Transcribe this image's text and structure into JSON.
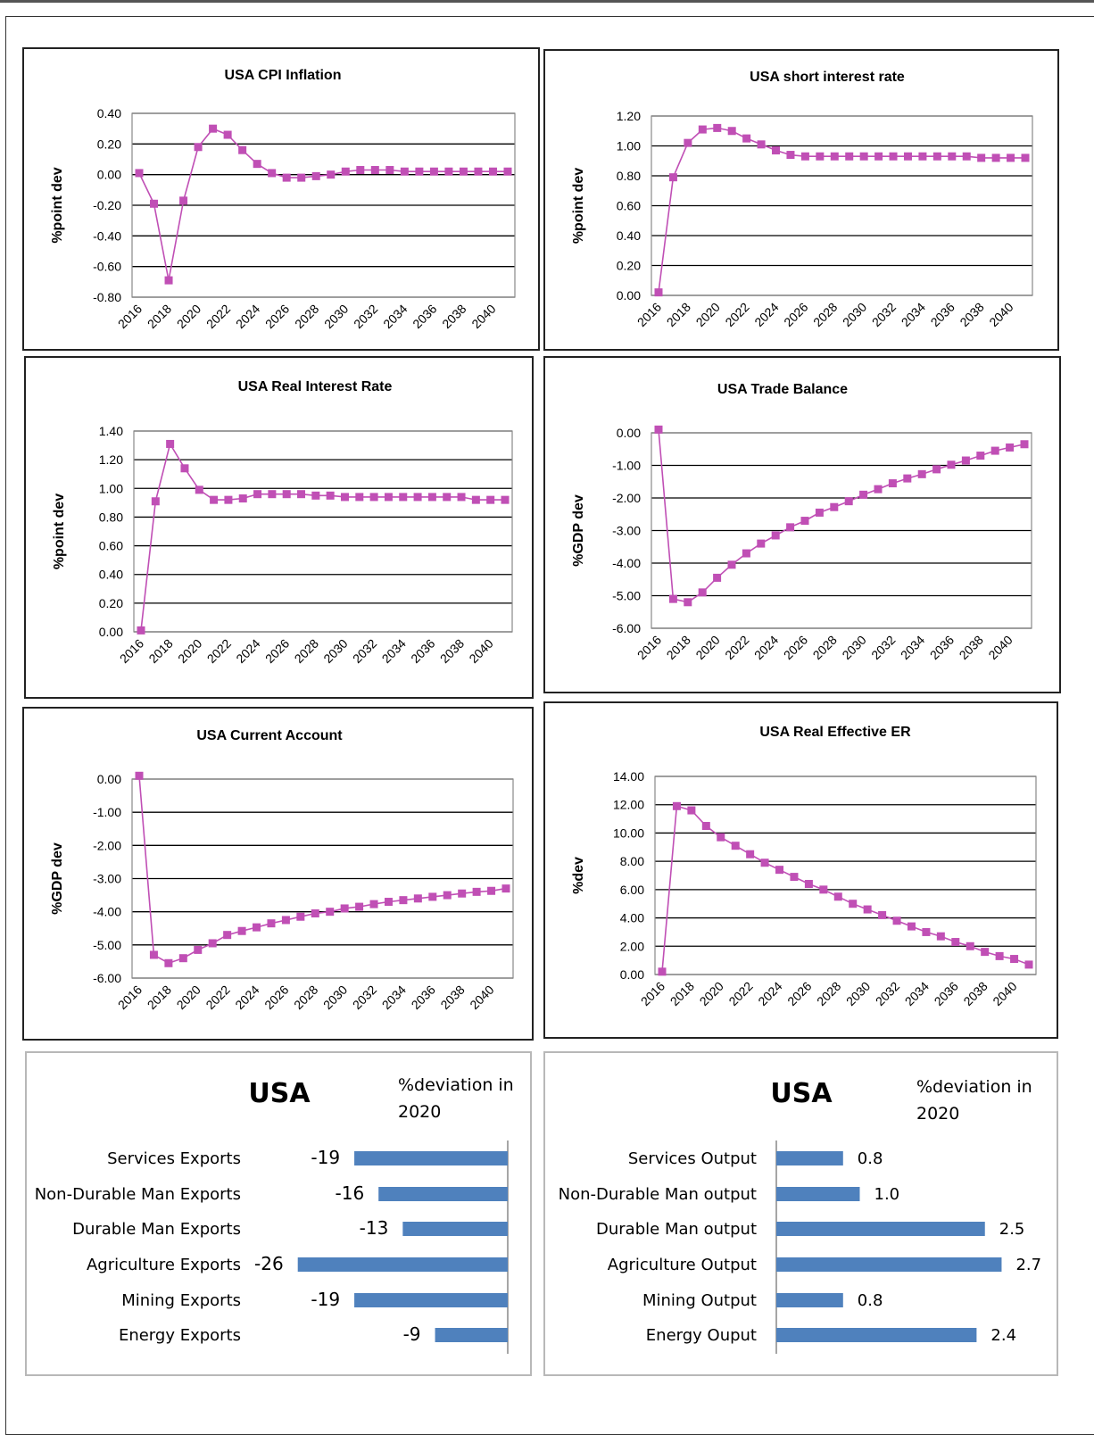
{
  "chart_data": [
    {
      "type": "line",
      "title": "USA CPI Inflation",
      "ylabel": "%point dev",
      "x_tick_labels": [
        "2016",
        "2018",
        "2020",
        "2022",
        "2024",
        "2026",
        "2028",
        "2030",
        "2032",
        "2034",
        "2036",
        "2038",
        "2040"
      ],
      "y_tick_labels": [
        "0.40",
        "0.20",
        "0.00",
        "-0.20",
        "-0.40",
        "-0.60",
        "-0.80"
      ],
      "ylim": [
        -0.8,
        0.4
      ],
      "grid": true,
      "color": "#c04fb5",
      "x": [
        2016,
        2017,
        2018,
        2019,
        2020,
        2021,
        2022,
        2023,
        2024,
        2025,
        2026,
        2027,
        2028,
        2029,
        2030,
        2031,
        2032,
        2033,
        2034,
        2035,
        2036,
        2037,
        2038,
        2039,
        2040,
        2041
      ],
      "values": [
        0.01,
        -0.19,
        -0.69,
        -0.17,
        0.18,
        0.3,
        0.26,
        0.16,
        0.07,
        0.01,
        -0.02,
        -0.02,
        -0.01,
        0.0,
        0.02,
        0.03,
        0.03,
        0.03,
        0.02,
        0.02,
        0.02,
        0.02,
        0.02,
        0.02,
        0.02,
        0.02
      ]
    },
    {
      "type": "line",
      "title": "USA short interest rate",
      "ylabel": "%point dev",
      "x_tick_labels": [
        "2016",
        "2018",
        "2020",
        "2022",
        "2024",
        "2026",
        "2028",
        "2030",
        "2032",
        "2034",
        "2036",
        "2038",
        "2040"
      ],
      "y_tick_labels": [
        "1.20",
        "1.00",
        "0.80",
        "0.60",
        "0.40",
        "0.20",
        "0.00"
      ],
      "ylim": [
        0,
        1.2
      ],
      "grid": true,
      "color": "#c04fb5",
      "x": [
        2016,
        2017,
        2018,
        2019,
        2020,
        2021,
        2022,
        2023,
        2024,
        2025,
        2026,
        2027,
        2028,
        2029,
        2030,
        2031,
        2032,
        2033,
        2034,
        2035,
        2036,
        2037,
        2038,
        2039,
        2040,
        2041
      ],
      "values": [
        0.02,
        0.79,
        1.02,
        1.11,
        1.12,
        1.1,
        1.05,
        1.01,
        0.97,
        0.94,
        0.93,
        0.93,
        0.93,
        0.93,
        0.93,
        0.93,
        0.93,
        0.93,
        0.93,
        0.93,
        0.93,
        0.93,
        0.92,
        0.92,
        0.92,
        0.92
      ]
    },
    {
      "type": "line",
      "title": "USA Real Interest Rate",
      "ylabel": "%point dev",
      "x_tick_labels": [
        "2016",
        "2018",
        "2020",
        "2022",
        "2024",
        "2026",
        "2028",
        "2030",
        "2032",
        "2034",
        "2036",
        "2038",
        "2040"
      ],
      "y_tick_labels": [
        "1.40",
        "1.20",
        "1.00",
        "0.80",
        "0.60",
        "0.40",
        "0.20",
        "0.00"
      ],
      "ylim": [
        0,
        1.4
      ],
      "grid": true,
      "color": "#c04fb5",
      "x": [
        2016,
        2017,
        2018,
        2019,
        2020,
        2021,
        2022,
        2023,
        2024,
        2025,
        2026,
        2027,
        2028,
        2029,
        2030,
        2031,
        2032,
        2033,
        2034,
        2035,
        2036,
        2037,
        2038,
        2039,
        2040,
        2041
      ],
      "values": [
        0.01,
        0.91,
        1.31,
        1.14,
        0.99,
        0.92,
        0.92,
        0.93,
        0.96,
        0.96,
        0.96,
        0.96,
        0.95,
        0.95,
        0.94,
        0.94,
        0.94,
        0.94,
        0.94,
        0.94,
        0.94,
        0.94,
        0.94,
        0.92,
        0.92,
        0.92
      ]
    },
    {
      "type": "line",
      "title": "USA Trade Balance",
      "ylabel": "%GDP dev",
      "x_tick_labels": [
        "2016",
        "2018",
        "2020",
        "2022",
        "2024",
        "2026",
        "2028",
        "2030",
        "2032",
        "2034",
        "2036",
        "2038",
        "2040"
      ],
      "y_tick_labels": [
        "0.00",
        "-1.00",
        "-2.00",
        "-3.00",
        "-4.00",
        "-5.00",
        "-6.00"
      ],
      "ylim": [
        -6,
        0
      ],
      "grid": true,
      "color": "#c04fb5",
      "x": [
        2016,
        2017,
        2018,
        2019,
        2020,
        2021,
        2022,
        2023,
        2024,
        2025,
        2026,
        2027,
        2028,
        2029,
        2030,
        2031,
        2032,
        2033,
        2034,
        2035,
        2036,
        2037,
        2038,
        2039,
        2040,
        2041
      ],
      "values": [
        0.1,
        -5.1,
        -5.2,
        -4.9,
        -4.45,
        -4.05,
        -3.7,
        -3.4,
        -3.15,
        -2.9,
        -2.7,
        -2.45,
        -2.28,
        -2.1,
        -1.9,
        -1.73,
        -1.55,
        -1.4,
        -1.27,
        -1.12,
        -0.98,
        -0.85,
        -0.7,
        -0.55,
        -0.45,
        -0.35
      ]
    },
    {
      "type": "line",
      "title": "USA Current Account",
      "ylabel": "%GDP dev",
      "x_tick_labels": [
        "2016",
        "2018",
        "2020",
        "2022",
        "2024",
        "2026",
        "2028",
        "2030",
        "2032",
        "2034",
        "2036",
        "2038",
        "2040"
      ],
      "y_tick_labels": [
        "0.00",
        "-1.00",
        "-2.00",
        "-3.00",
        "-4.00",
        "-5.00",
        "-6.00"
      ],
      "ylim": [
        -6,
        0
      ],
      "grid": true,
      "color": "#c04fb5",
      "x": [
        2016,
        2017,
        2018,
        2019,
        2020,
        2021,
        2022,
        2023,
        2024,
        2025,
        2026,
        2027,
        2028,
        2029,
        2030,
        2031,
        2032,
        2033,
        2034,
        2035,
        2036,
        2037,
        2038,
        2039,
        2040,
        2041
      ],
      "values": [
        0.1,
        -5.3,
        -5.55,
        -5.4,
        -5.15,
        -4.95,
        -4.7,
        -4.58,
        -4.47,
        -4.35,
        -4.25,
        -4.15,
        -4.05,
        -4.0,
        -3.9,
        -3.85,
        -3.77,
        -3.7,
        -3.65,
        -3.6,
        -3.55,
        -3.5,
        -3.45,
        -3.4,
        -3.37,
        -3.3
      ]
    },
    {
      "type": "line",
      "title": "USA Real Effective ER",
      "ylabel": "%dev",
      "x_tick_labels": [
        "2016",
        "2018",
        "2020",
        "2022",
        "2024",
        "2026",
        "2028",
        "2030",
        "2032",
        "2034",
        "2036",
        "2038",
        "2040"
      ],
      "y_tick_labels": [
        "14.00",
        "12.00",
        "10.00",
        "8.00",
        "6.00",
        "4.00",
        "2.00",
        "0.00"
      ],
      "ylim": [
        0,
        14
      ],
      "grid": true,
      "color": "#c04fb5",
      "x": [
        2016,
        2017,
        2018,
        2019,
        2020,
        2021,
        2022,
        2023,
        2024,
        2025,
        2026,
        2027,
        2028,
        2029,
        2030,
        2031,
        2032,
        2033,
        2034,
        2035,
        2036,
        2037,
        2038,
        2039,
        2040,
        2041
      ],
      "values": [
        0.2,
        11.9,
        11.6,
        10.5,
        9.7,
        9.1,
        8.5,
        7.9,
        7.4,
        6.9,
        6.4,
        6.0,
        5.5,
        5.0,
        4.6,
        4.2,
        3.8,
        3.4,
        3.0,
        2.7,
        2.3,
        2.0,
        1.6,
        1.3,
        1.1,
        0.7
      ]
    },
    {
      "type": "bar",
      "orientation": "horizontal",
      "title": "USA",
      "subtitle_lines": [
        "%deviation in",
        "2020"
      ],
      "categories": [
        "Services Exports",
        "Non-Durable  Man Exports",
        "Durable Man Exports",
        "Agriculture  Exports",
        "Mining  Exports",
        "Energy Exports"
      ],
      "values": [
        -19,
        -16,
        -13,
        -26,
        -19,
        -9
      ],
      "value_labels": [
        "-19",
        "-16",
        "-13",
        "-26",
        "-19",
        "-9"
      ],
      "color": "#4f81bd"
    },
    {
      "type": "bar",
      "orientation": "horizontal",
      "title": "USA",
      "subtitle_lines": [
        "%deviation in",
        "2020"
      ],
      "categories": [
        "Services Output",
        "Non-Durable  Man output",
        "Durable Man output",
        "Agriculture  Output",
        "Mining Output",
        "Energy Ouput"
      ],
      "values": [
        0.8,
        1.0,
        2.5,
        2.7,
        0.8,
        2.4
      ],
      "value_labels": [
        "0.8",
        "1.0",
        "2.5",
        "2.7",
        "0.8",
        "2.4"
      ],
      "color": "#4f81bd"
    }
  ]
}
